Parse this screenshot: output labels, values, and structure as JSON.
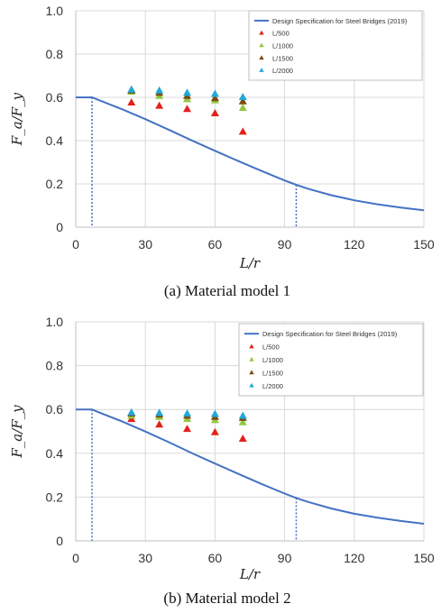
{
  "chart_data": [
    {
      "type": "scatter",
      "caption": "(a) Material model 1",
      "xlabel": "L/r",
      "ylabel": "F_a/F_y",
      "xlim": [
        0,
        150
      ],
      "ylim": [
        0,
        1.0
      ],
      "xticks": [
        "0",
        "30",
        "60",
        "90",
        "120",
        "150"
      ],
      "yticks": [
        "0",
        "0.2",
        "0.4",
        "0.6",
        "0.8",
        "1.0"
      ],
      "grid": true,
      "legend_position": "top-right",
      "curve": {
        "name": "Design Specification for Steel Bridges (2019)",
        "color": "#4472c4",
        "x": [
          0,
          7,
          10,
          20,
          30,
          40,
          50,
          60,
          70,
          80,
          90,
          94,
          95,
          100,
          110,
          120,
          130,
          140,
          150
        ],
        "y": [
          0.6,
          0.6,
          0.587,
          0.545,
          0.499,
          0.451,
          0.401,
          0.353,
          0.306,
          0.26,
          0.216,
          0.2,
          0.196,
          0.178,
          0.148,
          0.124,
          0.106,
          0.091,
          0.078
        ]
      },
      "verticals": [
        7,
        95
      ],
      "series": [
        {
          "name": "L/500",
          "color": "#e32119",
          "x": [
            24,
            36,
            48,
            60,
            72
          ],
          "y": [
            0.575,
            0.56,
            0.545,
            0.525,
            0.44
          ]
        },
        {
          "name": "L/1000",
          "color": "#92c83e",
          "x": [
            24,
            36,
            48,
            60,
            72
          ],
          "y": [
            0.625,
            0.605,
            0.59,
            0.585,
            0.55
          ]
        },
        {
          "name": "L/1500",
          "color": "#7a4b11",
          "x": [
            24,
            36,
            48,
            60,
            72
          ],
          "y": [
            0.63,
            0.62,
            0.605,
            0.595,
            0.58
          ]
        },
        {
          "name": "L/2000",
          "color": "#22a8d8",
          "x": [
            24,
            36,
            48,
            60,
            72
          ],
          "y": [
            0.635,
            0.63,
            0.62,
            0.615,
            0.6
          ]
        }
      ]
    },
    {
      "type": "scatter",
      "caption": "(b) Material model 2",
      "xlabel": "L/r",
      "ylabel": "F_a/F_y",
      "xlim": [
        0,
        150
      ],
      "ylim": [
        0,
        1.0
      ],
      "xticks": [
        "0",
        "30",
        "60",
        "90",
        "120",
        "150"
      ],
      "yticks": [
        "0",
        "0.2",
        "0.4",
        "0.6",
        "0.8",
        "1.0"
      ],
      "grid": true,
      "legend_position": "top-right",
      "curve": {
        "name": "Design Specification for Steel Bridges (2019)",
        "color": "#4472c4",
        "x": [
          0,
          7,
          10,
          20,
          30,
          40,
          50,
          60,
          70,
          80,
          90,
          94,
          95,
          100,
          110,
          120,
          130,
          140,
          150
        ],
        "y": [
          0.6,
          0.6,
          0.587,
          0.545,
          0.499,
          0.451,
          0.401,
          0.353,
          0.306,
          0.26,
          0.216,
          0.2,
          0.196,
          0.178,
          0.148,
          0.124,
          0.106,
          0.091,
          0.078
        ]
      },
      "verticals": [
        7,
        95
      ],
      "series": [
        {
          "name": "L/500",
          "color": "#e32119",
          "x": [
            24,
            36,
            48,
            60,
            72
          ],
          "y": [
            0.555,
            0.53,
            0.51,
            0.495,
            0.465
          ]
        },
        {
          "name": "L/1000",
          "color": "#92c83e",
          "x": [
            24,
            36,
            48,
            60,
            72
          ],
          "y": [
            0.57,
            0.565,
            0.555,
            0.55,
            0.54
          ]
        },
        {
          "name": "L/1500",
          "color": "#7a4b11",
          "x": [
            24,
            36,
            48,
            60,
            72
          ],
          "y": [
            0.58,
            0.575,
            0.57,
            0.565,
            0.56
          ]
        },
        {
          "name": "L/2000",
          "color": "#22a8d8",
          "x": [
            24,
            36,
            48,
            60,
            72
          ],
          "y": [
            0.585,
            0.583,
            0.58,
            0.578,
            0.57
          ]
        }
      ]
    }
  ]
}
